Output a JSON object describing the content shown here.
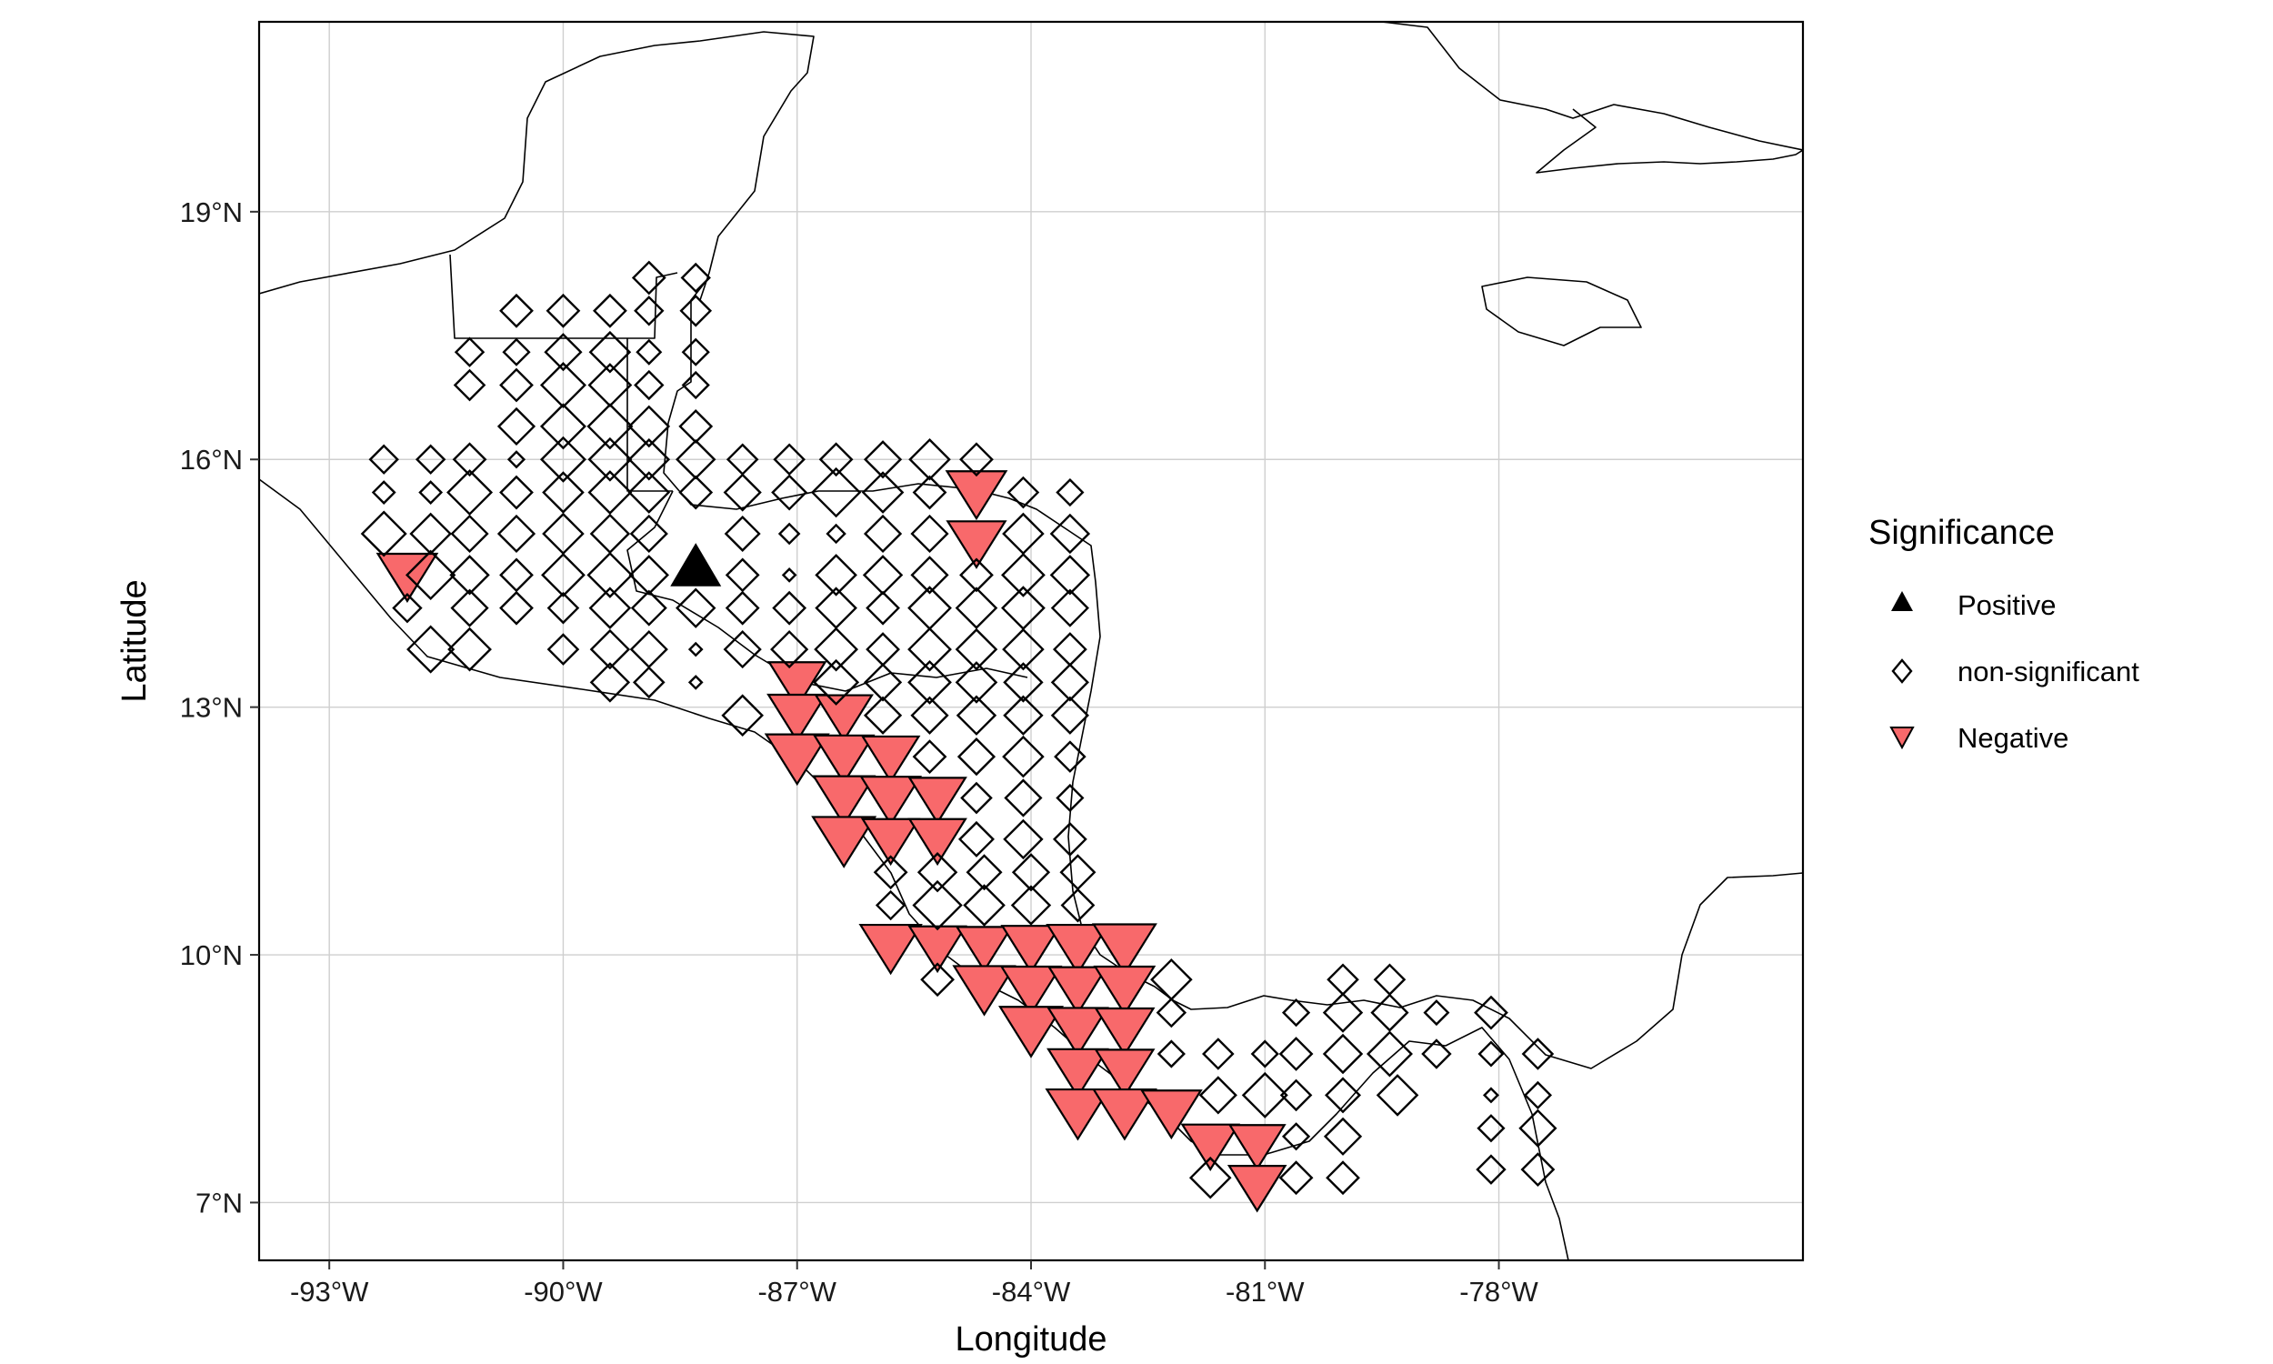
{
  "legend": {
    "title": "Significance",
    "items": [
      {
        "label": "Positive",
        "shape": "triangle-up",
        "color": "#000000"
      },
      {
        "label": "non-significant",
        "shape": "diamond-open",
        "color": "#000000"
      },
      {
        "label": "Negative",
        "shape": "triangle-down",
        "color": "#F8696B"
      }
    ]
  },
  "chart_data": {
    "type": "scatter",
    "xlabel": "Longitude",
    "ylabel": "Latitude",
    "xlim": [
      -93.9,
      -74.1
    ],
    "ylim": [
      6.3,
      21.3
    ],
    "x_ticks": [
      -93,
      -90,
      -87,
      -84,
      -81,
      -78
    ],
    "x_tick_labels": [
      "-93°W",
      "-90°W",
      "-87°W",
      "-84°W",
      "-81°W",
      "-78°W"
    ],
    "y_ticks": [
      7,
      10,
      13,
      16,
      19
    ],
    "y_tick_labels": [
      "7°N",
      "10°N",
      "13°N",
      "16°N",
      "19°N"
    ],
    "grid": true,
    "legend_position": "right",
    "colors": {
      "positive": "#000000",
      "negative": "#F8696B",
      "nonsig": "#000000"
    },
    "series": [
      {
        "name": "Positive",
        "points": [
          [
            -88.3,
            14.7,
            1.0
          ]
        ]
      },
      {
        "name": "Negative",
        "points": [
          [
            -92.0,
            14.6,
            0.9
          ],
          [
            -84.7,
            15.6,
            0.9
          ],
          [
            -84.7,
            15.0,
            0.85
          ],
          [
            -87.0,
            13.3,
            0.8
          ],
          [
            -87.0,
            12.9,
            0.85
          ],
          [
            -86.4,
            12.9,
            0.8
          ],
          [
            -87.0,
            12.4,
            1.0
          ],
          [
            -86.4,
            12.4,
            0.9
          ],
          [
            -85.8,
            12.4,
            0.8
          ],
          [
            -86.4,
            11.9,
            0.95
          ],
          [
            -85.8,
            11.9,
            0.9
          ],
          [
            -85.2,
            11.9,
            0.8
          ],
          [
            -86.4,
            11.4,
            1.0
          ],
          [
            -85.8,
            11.4,
            0.8
          ],
          [
            -85.2,
            11.4,
            0.8
          ],
          [
            -85.8,
            10.1,
            0.95
          ],
          [
            -85.2,
            10.1,
            0.8
          ],
          [
            -84.6,
            10.1,
            0.75
          ],
          [
            -84.0,
            10.1,
            0.85
          ],
          [
            -83.4,
            10.1,
            0.95
          ],
          [
            -82.8,
            10.1,
            1.0
          ],
          [
            -84.6,
            9.6,
            0.95
          ],
          [
            -84.0,
            9.6,
            0.9
          ],
          [
            -83.4,
            9.6,
            0.85
          ],
          [
            -82.8,
            9.6,
            0.9
          ],
          [
            -84.0,
            9.1,
            1.0
          ],
          [
            -83.4,
            9.1,
            0.9
          ],
          [
            -82.8,
            9.1,
            0.85
          ],
          [
            -83.4,
            8.6,
            0.9
          ],
          [
            -82.8,
            8.6,
            0.85
          ],
          [
            -83.4,
            8.1,
            1.0
          ],
          [
            -82.8,
            8.1,
            1.0
          ],
          [
            -82.2,
            8.1,
            0.9
          ],
          [
            -81.7,
            7.7,
            0.8
          ],
          [
            -81.1,
            7.7,
            0.75
          ],
          [
            -81.1,
            7.2,
            0.8
          ]
        ]
      },
      {
        "name": "non-significant",
        "points": [
          [
            -88.9,
            18.2,
            0.6
          ],
          [
            -88.3,
            18.2,
            0.5
          ],
          [
            -90.6,
            17.8,
            0.6
          ],
          [
            -90.0,
            17.8,
            0.6
          ],
          [
            -89.4,
            17.8,
            0.6
          ],
          [
            -88.9,
            17.8,
            0.5
          ],
          [
            -88.3,
            17.8,
            0.55
          ],
          [
            -91.2,
            17.3,
            0.5
          ],
          [
            -90.6,
            17.3,
            0.45
          ],
          [
            -90.0,
            17.3,
            0.7
          ],
          [
            -89.4,
            17.3,
            0.8
          ],
          [
            -88.9,
            17.3,
            0.4
          ],
          [
            -88.3,
            17.3,
            0.45
          ],
          [
            -91.2,
            16.9,
            0.55
          ],
          [
            -90.6,
            16.9,
            0.6
          ],
          [
            -90.0,
            16.9,
            0.9
          ],
          [
            -89.4,
            16.9,
            0.85
          ],
          [
            -88.9,
            16.9,
            0.5
          ],
          [
            -88.3,
            16.9,
            0.45
          ],
          [
            -90.6,
            16.4,
            0.7
          ],
          [
            -90.0,
            16.4,
            0.9
          ],
          [
            -89.4,
            16.4,
            0.9
          ],
          [
            -88.9,
            16.4,
            0.8
          ],
          [
            -88.3,
            16.4,
            0.6
          ],
          [
            -92.3,
            16.0,
            0.5
          ],
          [
            -91.7,
            16.0,
            0.5
          ],
          [
            -91.2,
            16.0,
            0.6
          ],
          [
            -90.6,
            16.0,
            0.2
          ],
          [
            -90.0,
            16.0,
            0.9
          ],
          [
            -89.4,
            16.0,
            0.85
          ],
          [
            -88.9,
            16.0,
            0.8
          ],
          [
            -88.3,
            16.0,
            0.75
          ],
          [
            -87.7,
            16.0,
            0.55
          ],
          [
            -87.1,
            16.0,
            0.55
          ],
          [
            -86.5,
            16.0,
            0.6
          ],
          [
            -85.9,
            16.0,
            0.7
          ],
          [
            -85.3,
            16.0,
            0.8
          ],
          [
            -84.7,
            16.0,
            0.6
          ],
          [
            -92.3,
            15.6,
            0.35
          ],
          [
            -91.7,
            15.6,
            0.35
          ],
          [
            -91.2,
            15.6,
            0.9
          ],
          [
            -90.6,
            15.6,
            0.6
          ],
          [
            -90.0,
            15.6,
            0.8
          ],
          [
            -89.4,
            15.6,
            0.85
          ],
          [
            -88.9,
            15.6,
            0.8
          ],
          [
            -88.3,
            15.6,
            0.6
          ],
          [
            -87.7,
            15.6,
            0.7
          ],
          [
            -87.1,
            15.6,
            0.65
          ],
          [
            -86.5,
            15.6,
            1.0
          ],
          [
            -85.9,
            15.6,
            0.8
          ],
          [
            -85.3,
            15.6,
            0.6
          ],
          [
            -84.1,
            15.6,
            0.55
          ],
          [
            -83.5,
            15.6,
            0.45
          ],
          [
            -92.3,
            15.1,
            0.9
          ],
          [
            -91.7,
            15.1,
            0.8
          ],
          [
            -91.2,
            15.1,
            0.7
          ],
          [
            -90.6,
            15.1,
            0.7
          ],
          [
            -90.0,
            15.1,
            0.8
          ],
          [
            -89.4,
            15.1,
            0.75
          ],
          [
            -88.9,
            15.1,
            0.7
          ],
          [
            -87.7,
            15.1,
            0.65
          ],
          [
            -87.1,
            15.1,
            0.3
          ],
          [
            -86.5,
            15.1,
            0.25
          ],
          [
            -85.9,
            15.1,
            0.7
          ],
          [
            -85.3,
            15.1,
            0.7
          ],
          [
            -84.1,
            15.1,
            0.8
          ],
          [
            -83.5,
            15.1,
            0.75
          ],
          [
            -91.7,
            14.6,
            1.0
          ],
          [
            -91.2,
            14.6,
            0.75
          ],
          [
            -90.6,
            14.6,
            0.6
          ],
          [
            -90.0,
            14.6,
            0.85
          ],
          [
            -89.4,
            14.6,
            0.9
          ],
          [
            -88.9,
            14.6,
            0.75
          ],
          [
            -87.7,
            14.6,
            0.6
          ],
          [
            -87.1,
            14.6,
            0.12
          ],
          [
            -86.5,
            14.6,
            0.8
          ],
          [
            -85.9,
            14.6,
            0.75
          ],
          [
            -85.3,
            14.6,
            0.7
          ],
          [
            -84.7,
            14.6,
            0.6
          ],
          [
            -84.1,
            14.6,
            0.85
          ],
          [
            -83.5,
            14.6,
            0.75
          ],
          [
            -92.0,
            14.2,
            0.5
          ],
          [
            -91.2,
            14.2,
            0.7
          ],
          [
            -90.6,
            14.2,
            0.6
          ],
          [
            -90.0,
            14.2,
            0.55
          ],
          [
            -89.4,
            14.2,
            0.8
          ],
          [
            -88.9,
            14.2,
            0.65
          ],
          [
            -88.3,
            14.2,
            0.75
          ],
          [
            -87.7,
            14.2,
            0.6
          ],
          [
            -87.1,
            14.2,
            0.6
          ],
          [
            -86.5,
            14.2,
            0.8
          ],
          [
            -85.9,
            14.2,
            0.6
          ],
          [
            -85.3,
            14.2,
            0.85
          ],
          [
            -84.7,
            14.2,
            0.8
          ],
          [
            -84.1,
            14.2,
            0.85
          ],
          [
            -83.5,
            14.2,
            0.7
          ],
          [
            -91.7,
            13.7,
            0.95
          ],
          [
            -91.2,
            13.7,
            0.85
          ],
          [
            -90.0,
            13.7,
            0.55
          ],
          [
            -89.4,
            13.7,
            0.75
          ],
          [
            -88.9,
            13.7,
            0.7
          ],
          [
            -88.3,
            13.7,
            0.12
          ],
          [
            -87.7,
            13.7,
            0.7
          ],
          [
            -87.1,
            13.7,
            0.7
          ],
          [
            -86.5,
            13.7,
            0.85
          ],
          [
            -85.9,
            13.7,
            0.6
          ],
          [
            -85.3,
            13.7,
            0.85
          ],
          [
            -84.7,
            13.7,
            0.8
          ],
          [
            -84.1,
            13.7,
            0.8
          ],
          [
            -83.5,
            13.7,
            0.6
          ],
          [
            -89.4,
            13.3,
            0.75
          ],
          [
            -88.9,
            13.3,
            0.55
          ],
          [
            -88.3,
            13.3,
            0.12
          ],
          [
            -86.5,
            13.3,
            0.9
          ],
          [
            -85.9,
            13.3,
            0.7
          ],
          [
            -85.3,
            13.3,
            0.85
          ],
          [
            -84.7,
            13.3,
            0.8
          ],
          [
            -84.1,
            13.3,
            0.75
          ],
          [
            -83.5,
            13.3,
            0.7
          ],
          [
            -87.7,
            12.9,
            0.8
          ],
          [
            -85.9,
            12.9,
            0.7
          ],
          [
            -85.3,
            12.9,
            0.7
          ],
          [
            -84.7,
            12.9,
            0.75
          ],
          [
            -84.1,
            12.9,
            0.75
          ],
          [
            -83.5,
            12.9,
            0.7
          ],
          [
            -85.3,
            12.4,
            0.6
          ],
          [
            -84.7,
            12.4,
            0.7
          ],
          [
            -84.1,
            12.4,
            0.8
          ],
          [
            -83.5,
            12.4,
            0.55
          ],
          [
            -84.7,
            11.9,
            0.55
          ],
          [
            -84.1,
            11.9,
            0.7
          ],
          [
            -83.5,
            11.9,
            0.45
          ],
          [
            -84.7,
            11.4,
            0.65
          ],
          [
            -84.1,
            11.4,
            0.75
          ],
          [
            -83.5,
            11.4,
            0.6
          ],
          [
            -85.8,
            11.0,
            0.6
          ],
          [
            -85.2,
            11.0,
            0.75
          ],
          [
            -84.6,
            11.0,
            0.65
          ],
          [
            -84.0,
            11.0,
            0.7
          ],
          [
            -83.4,
            11.0,
            0.65
          ],
          [
            -85.8,
            10.6,
            0.5
          ],
          [
            -85.2,
            10.6,
            1.0
          ],
          [
            -84.6,
            10.6,
            0.8
          ],
          [
            -84.0,
            10.6,
            0.75
          ],
          [
            -83.4,
            10.6,
            0.6
          ],
          [
            -85.2,
            9.7,
            0.6
          ],
          [
            -82.2,
            9.7,
            0.8
          ],
          [
            -82.2,
            9.3,
            0.5
          ],
          [
            -80.6,
            9.3,
            0.45
          ],
          [
            -80.0,
            9.7,
            0.55
          ],
          [
            -79.4,
            9.7,
            0.55
          ],
          [
            -80.0,
            9.3,
            0.75
          ],
          [
            -79.4,
            9.3,
            0.7
          ],
          [
            -78.8,
            9.3,
            0.4
          ],
          [
            -78.1,
            9.3,
            0.6
          ],
          [
            -82.2,
            8.8,
            0.45
          ],
          [
            -81.6,
            8.8,
            0.55
          ],
          [
            -81.0,
            8.8,
            0.45
          ],
          [
            -80.6,
            8.8,
            0.6
          ],
          [
            -80.0,
            8.8,
            0.75
          ],
          [
            -79.4,
            8.8,
            0.9
          ],
          [
            -78.8,
            8.8,
            0.5
          ],
          [
            -78.1,
            8.8,
            0.4
          ],
          [
            -77.5,
            8.8,
            0.55
          ],
          [
            -81.6,
            8.3,
            0.7
          ],
          [
            -81.0,
            8.3,
            0.9
          ],
          [
            -80.6,
            8.3,
            0.55
          ],
          [
            -80.0,
            8.3,
            0.65
          ],
          [
            -79.3,
            8.3,
            0.8
          ],
          [
            -78.1,
            8.3,
            0.15
          ],
          [
            -77.5,
            8.3,
            0.45
          ],
          [
            -81.7,
            7.3,
            0.8
          ],
          [
            -80.6,
            7.3,
            0.6
          ],
          [
            -80.0,
            7.3,
            0.6
          ],
          [
            -80.6,
            7.8,
            0.45
          ],
          [
            -80.0,
            7.8,
            0.7
          ],
          [
            -78.1,
            7.9,
            0.45
          ],
          [
            -77.5,
            7.9,
            0.7
          ],
          [
            -78.1,
            7.4,
            0.5
          ],
          [
            -77.5,
            7.4,
            0.6
          ]
        ]
      }
    ]
  }
}
